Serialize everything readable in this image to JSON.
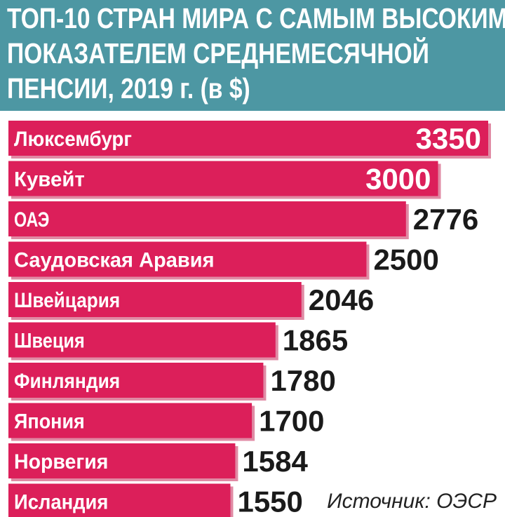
{
  "title_lines": [
    "ТОП-10 СТРАН МИРА С САМЫМ ВЫСОКИМ",
    "ПОКАЗАТЕЛЕМ СРЕДНЕМЕСЯЧНОЙ",
    "ПЕНСИИ, 2019 г. (в $)"
  ],
  "source": "Источник: ОЭСР",
  "colors": {
    "header_bg": "#4d97a3",
    "bar": "#dc1f5a",
    "bar_shadow": "#e08aa4",
    "label_text": "#ffffff",
    "value_outside": "#1a1a1a",
    "value_inside": "#ffffff"
  },
  "chart_data": {
    "type": "bar",
    "orientation": "horizontal",
    "categories": [
      "Люксембург",
      "Кувейт",
      "ОАЭ",
      "Саудовская Аравия",
      "Швейцария",
      "Швеция",
      "Финляндия",
      "Япония",
      "Норвегия",
      "Исландия"
    ],
    "values": [
      3350,
      3000,
      2776,
      2500,
      2046,
      1865,
      1780,
      1700,
      1584,
      1550
    ],
    "value_labels_inside": [
      true,
      true,
      false,
      false,
      false,
      false,
      false,
      false,
      false,
      false
    ],
    "xlim": [
      0,
      3350
    ],
    "grid": false
  }
}
